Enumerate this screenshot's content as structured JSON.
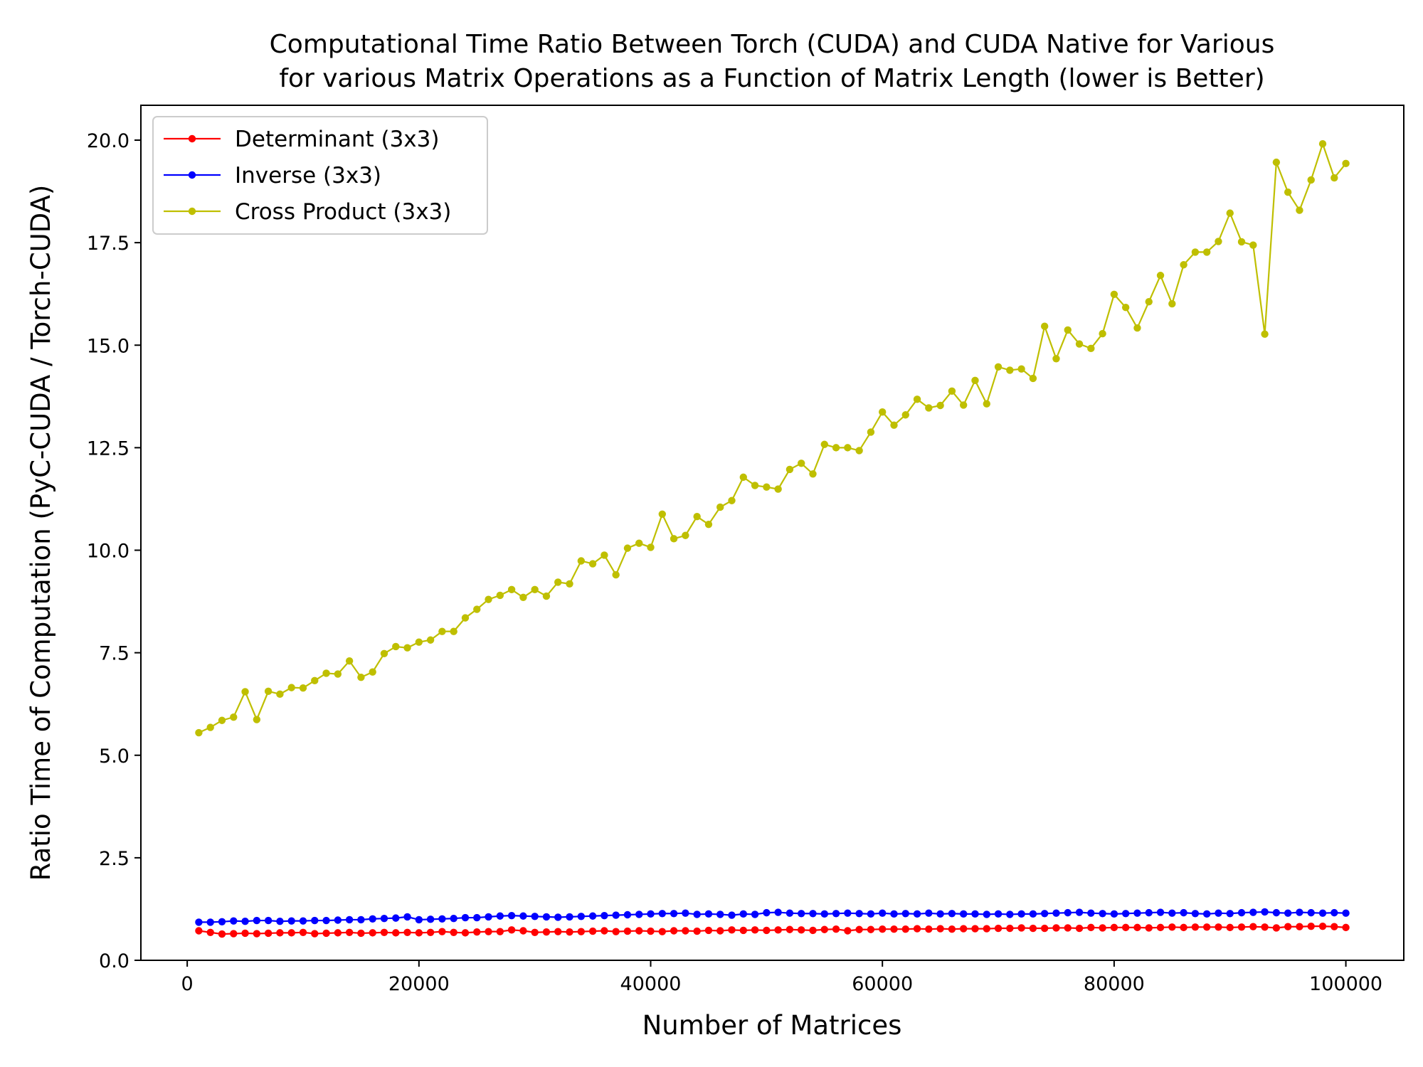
{
  "chart_data": {
    "type": "line",
    "title_lines": [
      "Computational Time Ratio Between Torch (CUDA) and CUDA Native for Various",
      "for various Matrix Operations as a Function of Matrix Length (lower is Better)"
    ],
    "xlabel": "Number of Matrices",
    "ylabel": "Ratio Time of Computation (PyC-CUDA / Torch-CUDA)",
    "xlim": [
      -4000,
      105000
    ],
    "ylim": [
      0,
      20.85
    ],
    "x_ticks": [
      0,
      20000,
      40000,
      60000,
      80000,
      100000
    ],
    "x_tick_labels": [
      "0",
      "20000",
      "40000",
      "60000",
      "80000",
      "100000"
    ],
    "y_ticks": [
      0,
      2.5,
      5,
      7.5,
      10,
      12.5,
      15,
      17.5,
      20
    ],
    "y_tick_labels": [
      "0.0",
      "2.5",
      "5.0",
      "7.5",
      "10.0",
      "12.5",
      "15.0",
      "17.5",
      "20.0"
    ],
    "grid": false,
    "legend_position": "top-left",
    "x_start": 1000,
    "x_step": 1000,
    "series": [
      {
        "name": "Determinant (3x3)",
        "color": "#ff0000",
        "values": [
          0.72,
          0.68,
          0.64,
          0.65,
          0.66,
          0.65,
          0.66,
          0.67,
          0.67,
          0.68,
          0.65,
          0.66,
          0.67,
          0.68,
          0.66,
          0.67,
          0.68,
          0.67,
          0.68,
          0.67,
          0.68,
          0.7,
          0.68,
          0.67,
          0.69,
          0.7,
          0.7,
          0.74,
          0.72,
          0.68,
          0.69,
          0.7,
          0.69,
          0.7,
          0.71,
          0.72,
          0.7,
          0.71,
          0.72,
          0.71,
          0.7,
          0.72,
          0.72,
          0.71,
          0.73,
          0.72,
          0.74,
          0.73,
          0.74,
          0.73,
          0.74,
          0.75,
          0.74,
          0.73,
          0.75,
          0.76,
          0.72,
          0.75,
          0.75,
          0.76,
          0.76,
          0.76,
          0.77,
          0.76,
          0.77,
          0.76,
          0.77,
          0.77,
          0.77,
          0.78,
          0.78,
          0.79,
          0.78,
          0.78,
          0.79,
          0.79,
          0.78,
          0.8,
          0.79,
          0.8,
          0.8,
          0.8,
          0.79,
          0.8,
          0.81,
          0.8,
          0.81,
          0.81,
          0.81,
          0.8,
          0.81,
          0.82,
          0.81,
          0.79,
          0.82,
          0.82,
          0.83,
          0.83,
          0.82,
          0.8
        ]
      },
      {
        "name": "Inverse (3x3)",
        "color": "#0000ff",
        "values": [
          0.93,
          0.93,
          0.94,
          0.96,
          0.95,
          0.97,
          0.97,
          0.95,
          0.96,
          0.96,
          0.97,
          0.97,
          0.98,
          0.99,
          0.99,
          1.01,
          1.02,
          1.03,
          1.06,
          0.99,
          1.0,
          1.01,
          1.02,
          1.04,
          1.04,
          1.06,
          1.08,
          1.09,
          1.08,
          1.07,
          1.06,
          1.05,
          1.06,
          1.07,
          1.08,
          1.09,
          1.1,
          1.11,
          1.12,
          1.13,
          1.14,
          1.14,
          1.15,
          1.12,
          1.13,
          1.12,
          1.1,
          1.13,
          1.12,
          1.16,
          1.17,
          1.15,
          1.14,
          1.14,
          1.13,
          1.14,
          1.15,
          1.14,
          1.13,
          1.15,
          1.13,
          1.14,
          1.13,
          1.15,
          1.13,
          1.14,
          1.13,
          1.13,
          1.12,
          1.13,
          1.12,
          1.13,
          1.13,
          1.14,
          1.15,
          1.16,
          1.17,
          1.15,
          1.14,
          1.13,
          1.14,
          1.15,
          1.16,
          1.17,
          1.15,
          1.16,
          1.14,
          1.13,
          1.15,
          1.14,
          1.16,
          1.17,
          1.18,
          1.16,
          1.15,
          1.17,
          1.16,
          1.15,
          1.16,
          1.15
        ]
      },
      {
        "name": "Cross Product (3x3)",
        "color": "#bfbf00",
        "values": [
          5.55,
          5.68,
          5.85,
          5.93,
          6.55,
          5.87,
          6.56,
          6.49,
          6.65,
          6.64,
          6.82,
          7.0,
          6.98,
          7.3,
          6.9,
          7.03,
          7.48,
          7.65,
          7.62,
          7.76,
          7.81,
          8.02,
          8.02,
          8.35,
          8.56,
          8.8,
          8.9,
          9.04,
          8.85,
          9.04,
          8.88,
          9.22,
          9.18,
          9.74,
          9.67,
          9.88,
          9.4,
          10.05,
          10.17,
          10.07,
          10.88,
          10.28,
          10.36,
          10.82,
          10.63,
          11.05,
          11.21,
          11.78,
          11.58,
          11.54,
          11.49,
          11.97,
          12.12,
          11.86,
          12.58,
          12.5,
          12.5,
          12.43,
          12.88,
          13.37,
          13.05,
          13.3,
          13.68,
          13.47,
          13.53,
          13.88,
          13.54,
          14.14,
          13.57,
          14.47,
          14.39,
          14.42,
          14.19,
          15.46,
          14.67,
          15.37,
          15.03,
          14.92,
          15.28,
          16.24,
          15.92,
          15.42,
          16.06,
          16.7,
          16.01,
          16.96,
          17.27,
          17.27,
          17.53,
          18.22,
          17.52,
          17.44,
          15.27,
          19.46,
          18.73,
          18.29,
          19.03,
          19.91,
          19.08,
          19.43
        ]
      }
    ]
  }
}
